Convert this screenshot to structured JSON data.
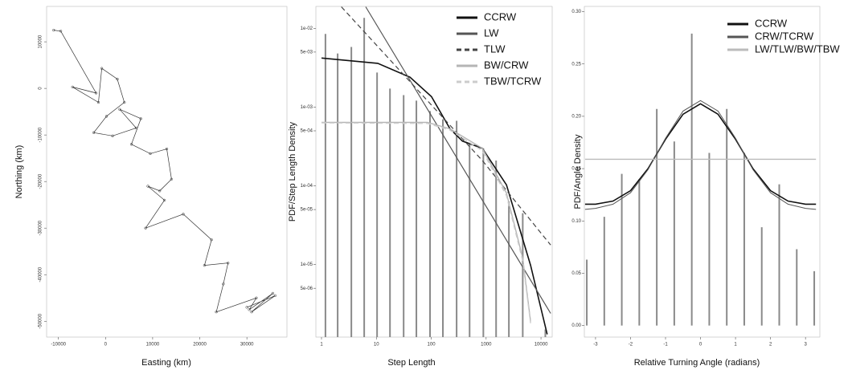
{
  "chart_data": [
    {
      "type": "line",
      "xlabel": "Easting (km)",
      "ylabel": "Northing (km)",
      "xlim": [
        -12500,
        38500
      ],
      "ylim": [
        -53400,
        17600
      ],
      "xticks": [
        -10000,
        0,
        10000,
        20000,
        30000
      ],
      "yticks": [
        10000,
        0,
        -10000,
        -20000,
        -30000,
        -40000,
        -50000
      ],
      "color": "#333333",
      "x": [
        -11000,
        -9500,
        -2000,
        -7000,
        -1500,
        -800,
        2500,
        4000,
        200,
        -2500,
        1500,
        6500,
        3000,
        7500,
        5500,
        9500,
        13000,
        14000,
        11500,
        9000,
        12500,
        8500,
        16500,
        22500,
        21000,
        26000,
        25000,
        23500,
        32000,
        30500,
        35500,
        31000,
        36000,
        30000
      ],
      "values": [
        12500,
        12300,
        -1000,
        300,
        -3000,
        4300,
        2000,
        -3000,
        -6000,
        -9500,
        -10200,
        -8500,
        -4500,
        -6500,
        -12000,
        -14000,
        -13000,
        -19500,
        -22000,
        -21000,
        -24000,
        -30000,
        -27000,
        -32500,
        -38000,
        -37500,
        -42000,
        -48000,
        -45000,
        -47500,
        -44000,
        -48000,
        -44500,
        -47000
      ]
    },
    {
      "type": "bar",
      "xlabel": "Step Length",
      "ylabel": "PDF/Step Length Density",
      "log_x": true,
      "log_y": true,
      "xlim": [
        0.79,
        16000
      ],
      "ylim": [
        1.2e-06,
        0.019
      ],
      "xticks": [
        1,
        10,
        100,
        1000,
        10000
      ],
      "yticks": [
        {
          "value": 0.01,
          "label": "1e-02"
        },
        {
          "value": 0.005,
          "label": "5e-03"
        },
        {
          "value": 0.001,
          "label": "1e-03"
        },
        {
          "value": 0.0005,
          "label": "5e-04"
        },
        {
          "value": 0.0001,
          "label": "1e-04"
        },
        {
          "value": 5e-05,
          "label": "5e-05"
        },
        {
          "value": 1e-05,
          "label": "1e-05"
        },
        {
          "value": 5e-06,
          "label": "5e-06"
        }
      ],
      "color": "#8a8a8a",
      "x": [
        1.18,
        1.97,
        3.5,
        6.0,
        10.3,
        17.7,
        31.4,
        53.6,
        95,
        163,
        290,
        500,
        890,
        1520,
        2600,
        4650,
        12000
      ],
      "values": [
        0.0085,
        0.0048,
        0.0058,
        0.0136,
        0.00275,
        0.00172,
        0.00142,
        0.00121,
        0.00089,
        0.0007,
        0.00067,
        0.00035,
        0.0003,
        0.00021,
        6.4e-05,
        4.5e-05,
        1.5e-06
      ],
      "legend": "upper right",
      "series": [
        {
          "name": "CCRW",
          "color": "#111111",
          "width": 1.6,
          "dash": "none",
          "x": [
            1,
            10.6,
            41,
            101,
            220,
            370,
            850,
            2350,
            6450,
            13000
          ],
          "values": [
            0.0042,
            0.0036,
            0.0024,
            0.00136,
            0.00053,
            0.00037,
            0.0003,
            0.000103,
            9.8e-06,
            1.3e-06
          ]
        },
        {
          "name": "LW",
          "color": "#555555",
          "width": 1.2,
          "dash": "none",
          "x": [
            6.4,
            15000
          ],
          "values": [
            0.0188,
            2.4e-06
          ]
        },
        {
          "name": "TLW",
          "color": "#444444",
          "width": 1.2,
          "dash": "6,4",
          "x": [
            2.3,
            850,
            15000
          ],
          "values": [
            0.0188,
            0.00021,
            1.77e-05
          ]
        },
        {
          "name": "BW/CRW",
          "color": "#b5b5b5",
          "width": 1.4,
          "dash": "none",
          "x": [
            1,
            85,
            220,
            850,
            2350,
            4650,
            6450
          ],
          "values": [
            0.00064,
            0.00064,
            0.00053,
            0.0003,
            8.1e-05,
            1.2e-05,
            1.9e-06
          ]
        },
        {
          "name": "TBW/TCRW",
          "color": "#cccccc",
          "width": 1.4,
          "dash": "6,4",
          "x": [
            1,
            85,
            220,
            850,
            2350,
            4650,
            6450
          ],
          "values": [
            0.00063,
            0.00062,
            0.00051,
            0.00028,
            7.5e-05,
            1.1e-05,
            1.8e-06
          ]
        }
      ]
    },
    {
      "type": "bar",
      "xlabel": "Relative Turning Angle (radians)",
      "ylabel": "PDF/Angle Density",
      "xlim": [
        -3.32,
        3.41
      ],
      "ylim": [
        -0.011,
        0.305
      ],
      "xticks": [
        -3,
        -2,
        -1,
        0,
        1,
        2,
        3
      ],
      "yticks": [
        {
          "value": 0,
          "label": "0.00"
        },
        {
          "value": 0.05,
          "label": "0.05"
        },
        {
          "value": 0.1,
          "label": "0.10"
        },
        {
          "value": 0.15,
          "label": "0.15"
        },
        {
          "value": 0.2,
          "label": "0.20"
        },
        {
          "value": 0.25,
          "label": "0.25"
        },
        {
          "value": 0.3,
          "label": "0.30"
        }
      ],
      "color": "#8a8a8a",
      "x": [
        -3.25,
        -2.75,
        -2.25,
        -1.75,
        -1.25,
        -0.75,
        -0.25,
        0.25,
        0.75,
        1.25,
        1.75,
        2.25,
        2.75,
        3.25
      ],
      "values": [
        0.063,
        0.104,
        0.145,
        0.14,
        0.207,
        0.176,
        0.279,
        0.165,
        0.207,
        0.165,
        0.094,
        0.135,
        0.073,
        0.052
      ],
      "legend": "upper right",
      "series": [
        {
          "name": "CCRW",
          "color": "#111111",
          "width": 1.6,
          "dash": "none",
          "x": [
            -3.3,
            -3,
            -2.5,
            -2,
            -1.5,
            -1,
            -0.5,
            0,
            0.5,
            1,
            1.5,
            2,
            2.5,
            3,
            3.3
          ],
          "values": [
            0.116,
            0.116,
            0.119,
            0.129,
            0.15,
            0.178,
            0.202,
            0.212,
            0.202,
            0.178,
            0.15,
            0.129,
            0.119,
            0.116,
            0.116
          ]
        },
        {
          "name": "CRW/TCRW",
          "color": "#555555",
          "width": 1,
          "dash": "none",
          "x": [
            -3.3,
            -3,
            -2.5,
            -2,
            -1.5,
            -1,
            -0.5,
            0,
            0.5,
            1,
            1.5,
            2,
            2.5,
            3,
            3.3
          ],
          "values": [
            0.111,
            0.112,
            0.116,
            0.127,
            0.149,
            0.179,
            0.205,
            0.215,
            0.205,
            0.179,
            0.149,
            0.127,
            0.116,
            0.112,
            0.111
          ]
        },
        {
          "name": "LW/TLW/BW/TBW",
          "color": "#bbbbbb",
          "width": 1.4,
          "dash": "none",
          "x": [
            -3.3,
            3.3
          ],
          "values": [
            0.159,
            0.159
          ]
        }
      ]
    }
  ]
}
